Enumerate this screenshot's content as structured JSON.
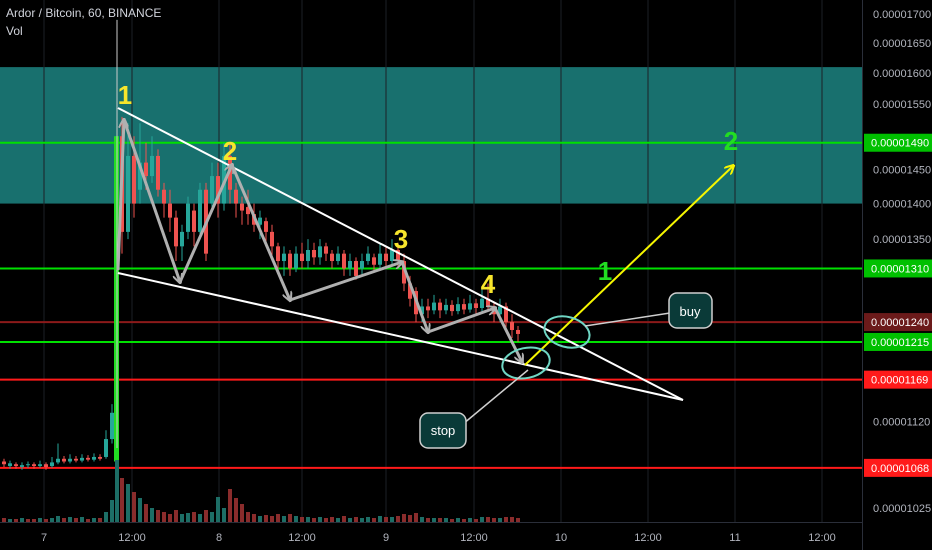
{
  "header": {
    "symbol": "Ardor / Bitcoin, 60, BINANCE",
    "indicator": "Vol"
  },
  "chart_data": {
    "type": "candlestick",
    "price_axis": {
      "ticks": [
        1.7e-05,
        1.65e-05,
        1.6e-05,
        1.55e-05,
        1.5e-05,
        1.45e-05,
        1.4e-05,
        1.35e-05,
        1.3e-05,
        1.25e-05,
        1.2e-05,
        1.15e-05,
        1.12e-05,
        1.07e-05,
        1.025e-05
      ],
      "tick_labels": [
        "0.00001700",
        "0.00001650",
        "0.00001600",
        "0.00001550",
        "",
        "0.00001450",
        "0.00001400",
        "0.00001350",
        "",
        "",
        "",
        "",
        "0.00001120",
        "",
        "0.00001025"
      ]
    },
    "time_axis": {
      "labels": [
        "7",
        "12:00",
        "8",
        "12:00",
        "9",
        "12:00",
        "10",
        "12:00",
        "11",
        "12:00"
      ]
    },
    "resistance_zone": {
      "from": 1.4e-05,
      "to": 1.61e-05,
      "color": "#1e8c8a"
    },
    "levels": [
      {
        "price": 1.49e-05,
        "label": "0.00001490",
        "color": "#00e000"
      },
      {
        "price": 1.31e-05,
        "label": "0.00001310",
        "color": "#00e000"
      },
      {
        "price": 1.24e-05,
        "label": "0.00001240",
        "color": "#8b1a1a"
      },
      {
        "price": 1.215e-05,
        "label": "0.00001215",
        "color": "#00e000"
      },
      {
        "price": 1.169e-05,
        "label": "0.00001169",
        "color": "#ff1a1a"
      },
      {
        "price": 1.068e-05,
        "label": "0.00001068",
        "color": "#ff1a1a"
      }
    ],
    "wave_labels": [
      {
        "text": "1",
        "color": "#f7e52c"
      },
      {
        "text": "2",
        "color": "#f7e52c"
      },
      {
        "text": "3",
        "color": "#f7e52c"
      },
      {
        "text": "4",
        "color": "#f7e52c"
      },
      {
        "text": "1",
        "color": "#22dd22"
      },
      {
        "text": "2",
        "color": "#22dd22"
      }
    ],
    "callouts": {
      "buy": "buy",
      "stop": "stop"
    },
    "colors": {
      "up": "#26a69a",
      "down": "#ef5350",
      "projection": "#f6f600",
      "wedge": "#ffffff"
    }
  }
}
